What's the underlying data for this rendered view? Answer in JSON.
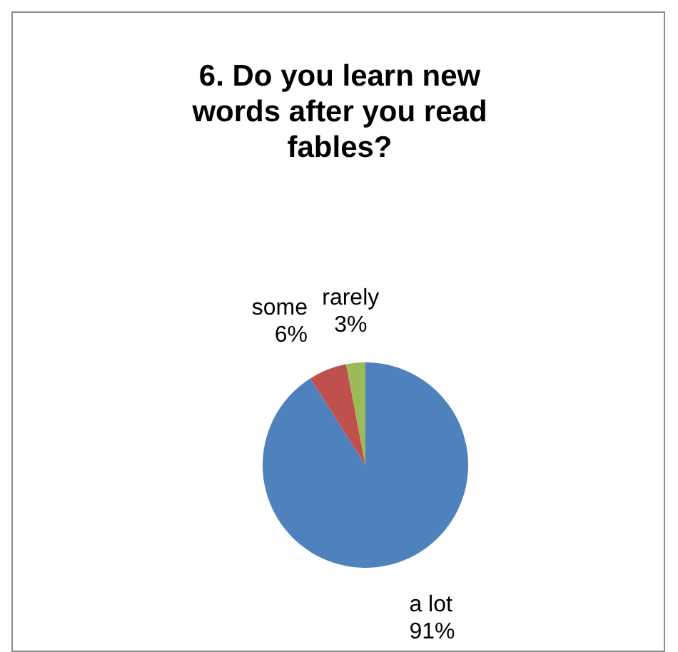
{
  "chart_data": {
    "type": "pie",
    "title": "6. Do you learn new words after you read fables?",
    "categories": [
      "a lot",
      "some",
      "rarely"
    ],
    "values": [
      91,
      6,
      3
    ],
    "value_labels": [
      "91%",
      "6%",
      "3%"
    ],
    "colors": [
      "#4f81bd",
      "#c0504d",
      "#9bbb59"
    ],
    "legend": false
  }
}
